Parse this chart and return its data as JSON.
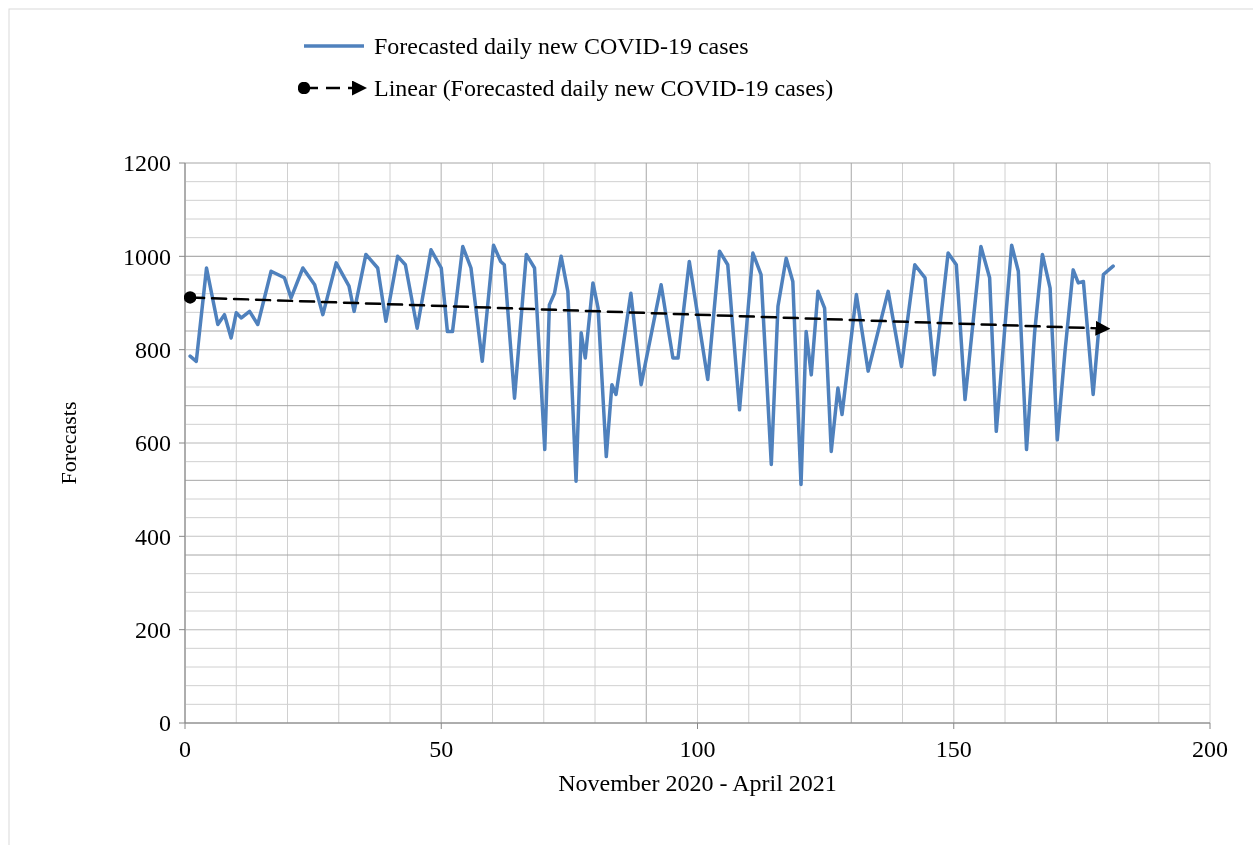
{
  "chart_data": {
    "type": "line",
    "xlabel": "November 2020 - April 2021",
    "ylabel": "Forecasts",
    "xlim": [
      0,
      200
    ],
    "xticks": [
      0,
      50,
      100,
      150,
      200
    ],
    "ylim": [
      0,
      1200
    ],
    "yticks": [
      0,
      200,
      400,
      600,
      800,
      1000,
      1200
    ],
    "grid": true,
    "legend": "top",
    "series": [
      {
        "name": "Forecasted daily new COVID-19 cases",
        "color": "#4f81bd",
        "x": [
          1,
          2.2,
          4.2,
          6.4,
          7.7,
          9,
          10,
          11,
          12.6,
          14.2,
          16.8,
          19.4,
          20.7,
          23,
          25.3,
          26.9,
          29.5,
          32,
          33,
          35.3,
          37.6,
          39.2,
          41.5,
          43,
          45.3,
          48,
          50,
          51.2,
          52.2,
          54.2,
          55.8,
          58,
          60.2,
          61.6,
          62.3,
          64.3,
          66.6,
          68.2,
          70.2,
          71.1,
          72.1,
          73.4,
          74.7,
          76.3,
          77.3,
          78.1,
          79.6,
          80.6,
          82.2,
          83.3,
          84.1,
          87,
          89,
          92.9,
          95.2,
          96.2,
          98.4,
          102,
          104.3,
          105.9,
          108.2,
          110.8,
          112.4,
          114.4,
          115.7,
          117.3,
          118.6,
          120.2,
          121.2,
          122.2,
          123.5,
          124.8,
          126.1,
          127.4,
          128.2,
          131,
          133.3,
          137.2,
          139.8,
          142.4,
          144.4,
          146.2,
          148.9,
          150.5,
          152.2,
          155.3,
          157,
          158.3,
          161.3,
          162.6,
          164.2,
          165.8,
          167.3,
          168.8,
          170.2,
          171.7,
          173.3,
          174.3,
          175.3,
          177.2,
          179.2,
          181.1
        ],
        "values": [
          786,
          775,
          975,
          854,
          875,
          825,
          879,
          868,
          882,
          854,
          968,
          954,
          911,
          975,
          939,
          875,
          986,
          936,
          882,
          1004,
          975,
          861,
          1000,
          982,
          846,
          1014,
          975,
          839,
          839,
          1021,
          975,
          775,
          1024,
          989,
          982,
          696,
          1004,
          975,
          586,
          896,
          921,
          1000,
          925,
          518,
          836,
          782,
          943,
          889,
          571,
          725,
          704,
          921,
          725,
          939,
          782,
          782,
          989,
          736,
          1011,
          982,
          671,
          1007,
          961,
          554,
          893,
          996,
          946,
          511,
          839,
          746,
          925,
          889,
          582,
          718,
          661,
          918,
          754,
          925,
          764,
          982,
          954,
          746,
          1007,
          982,
          693,
          1021,
          954,
          625,
          1024,
          968,
          586,
          839,
          1004,
          932,
          607,
          796,
          971,
          943,
          946,
          704,
          961,
          979
        ]
      },
      {
        "name": "Linear (Forecasted daily new COVID-19 cases)",
        "type": "line",
        "color": "#000000",
        "line_style": "dashed",
        "x": [
          1,
          180
        ],
        "values": [
          912,
          845
        ]
      }
    ]
  }
}
